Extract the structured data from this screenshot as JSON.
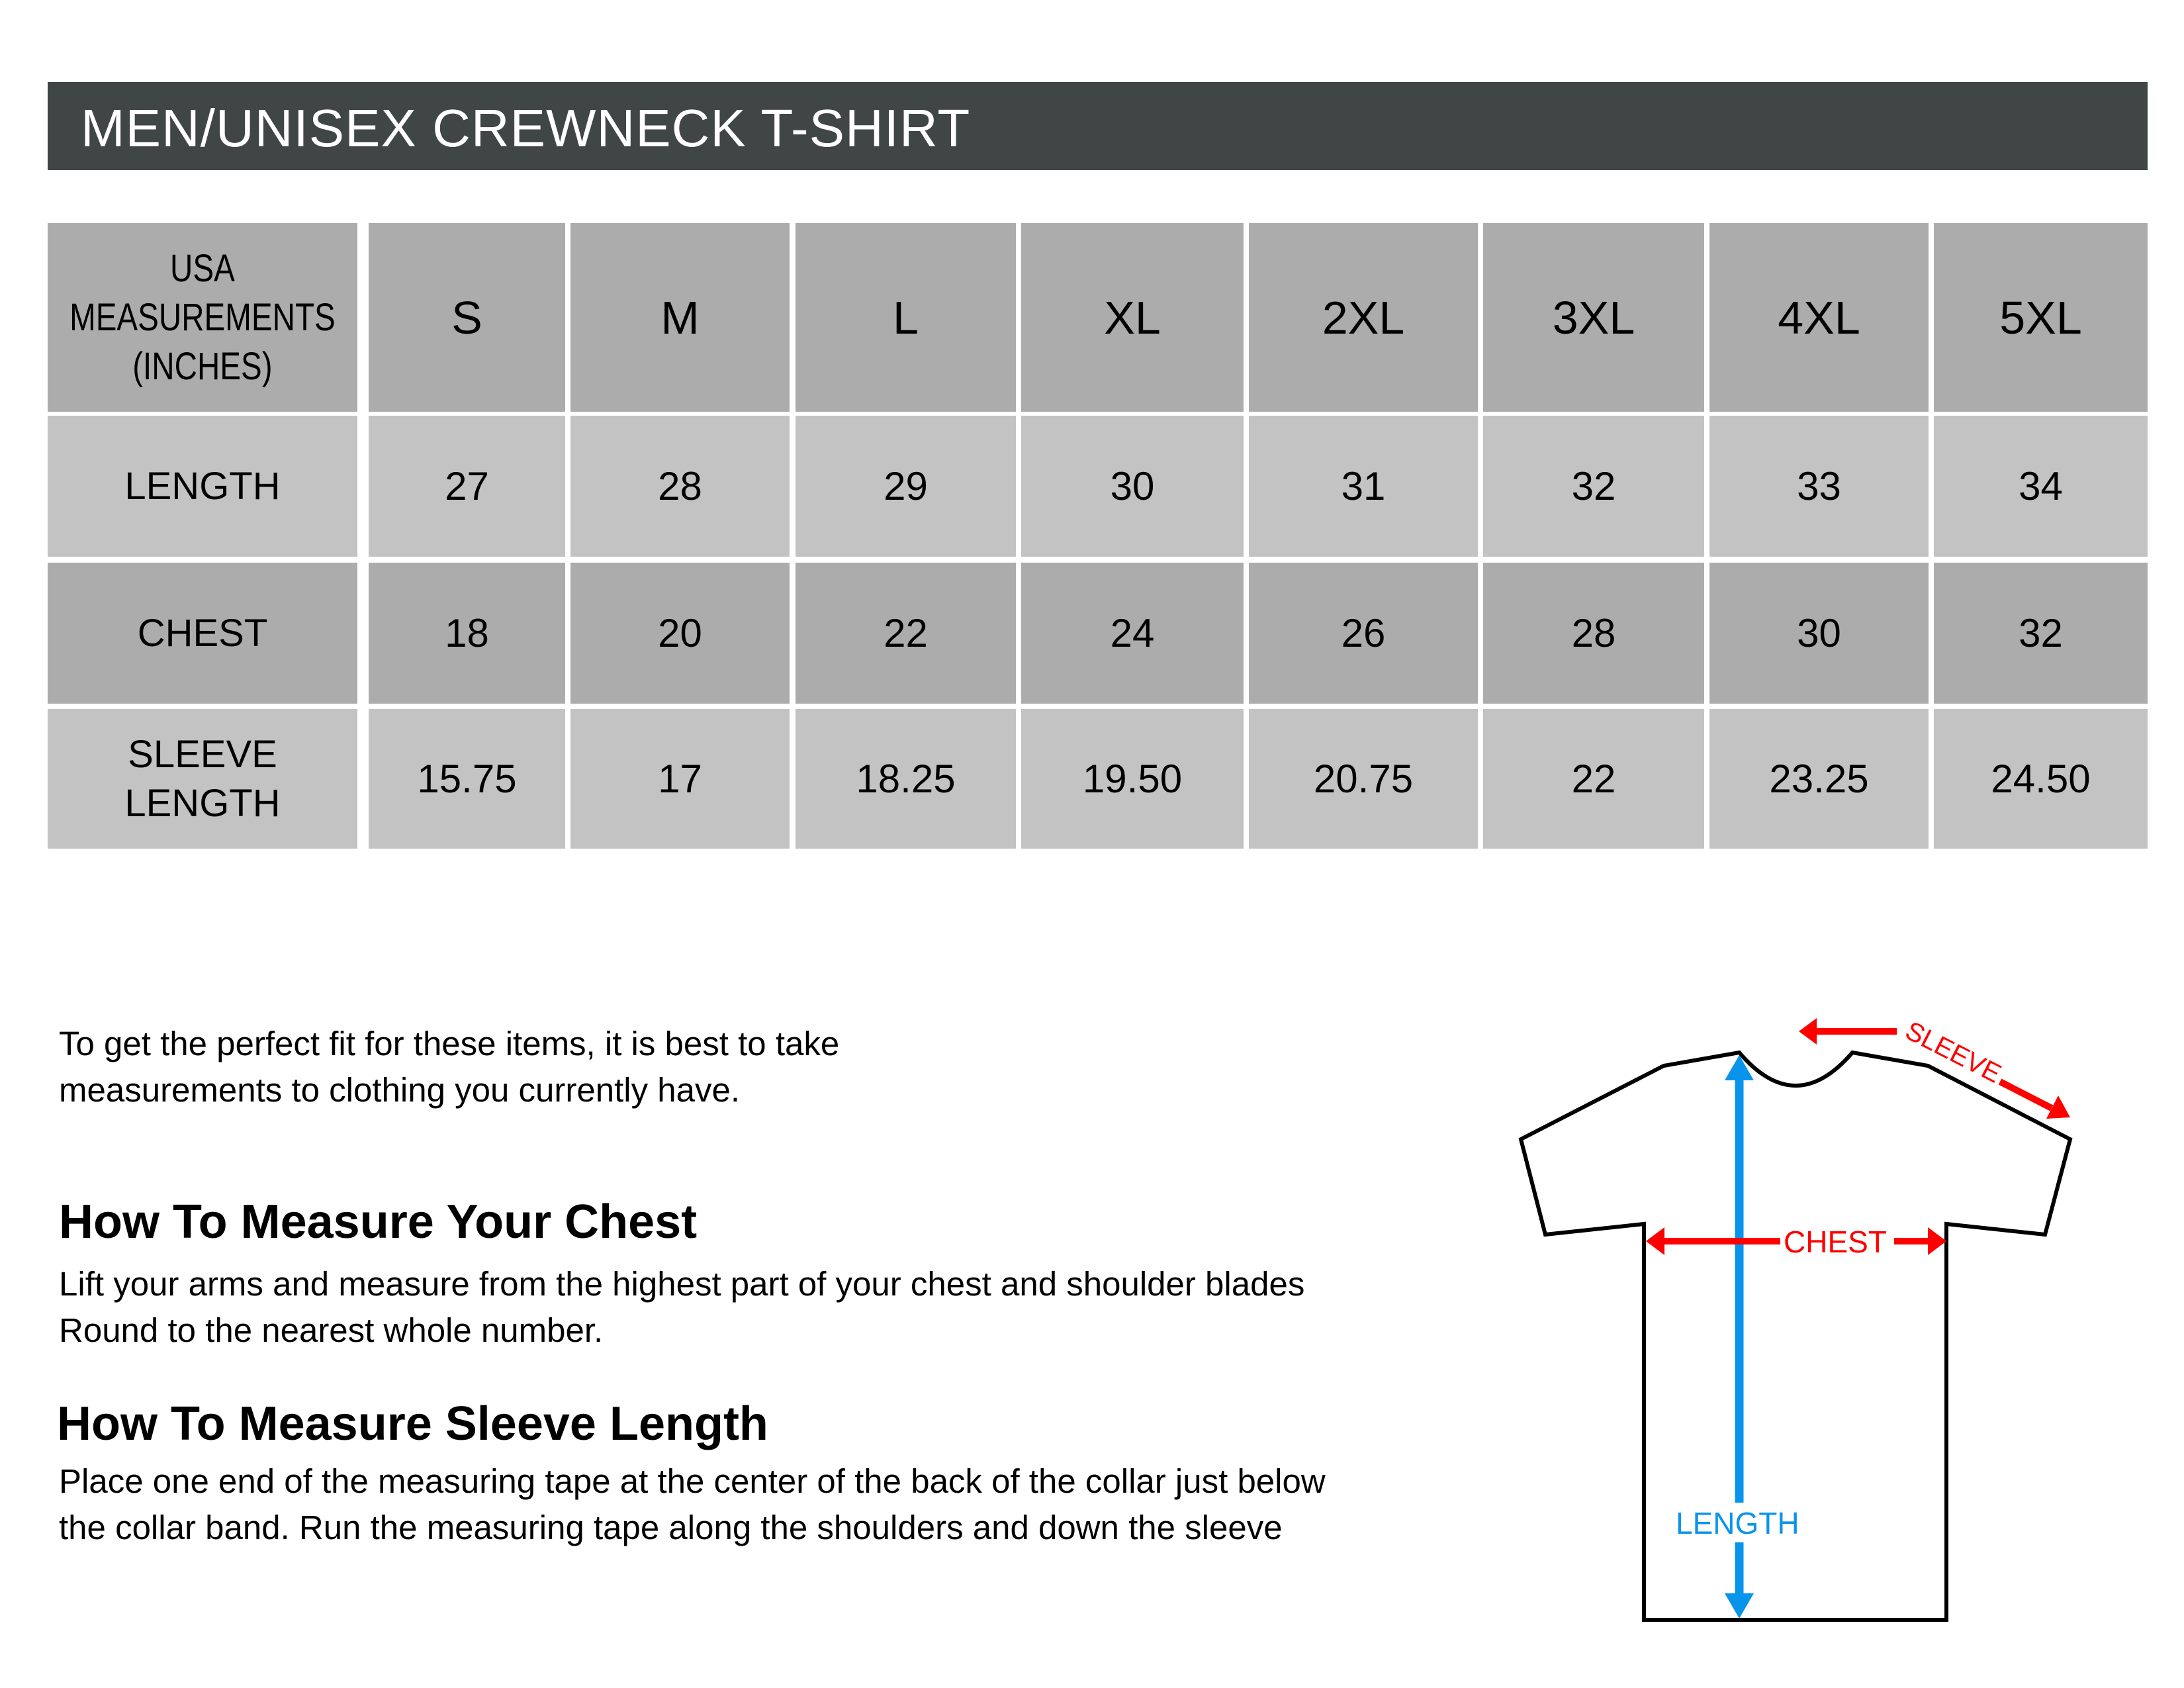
{
  "title": "MEN/UNISEX CREWNECK T-SHIRT",
  "table": {
    "corner_lines": [
      "USA",
      "MEASUREMENTS",
      "(INCHES)"
    ],
    "sizes": [
      "S",
      "M",
      "L",
      "XL",
      "2XL",
      "3XL",
      "4XL",
      "5XL"
    ],
    "rows": [
      {
        "label": "LENGTH",
        "values": [
          "27",
          "28",
          "29",
          "30",
          "31",
          "32",
          "33",
          "34"
        ]
      },
      {
        "label": "CHEST",
        "values": [
          "18",
          "20",
          "22",
          "24",
          "26",
          "28",
          "30",
          "32"
        ]
      },
      {
        "label_lines": [
          "SLEEVE",
          "LENGTH"
        ],
        "values": [
          "15.75",
          "17",
          "18.25",
          "19.50",
          "20.75",
          "22",
          "23.25",
          "24.50"
        ]
      }
    ]
  },
  "intro": [
    "To get the perfect fit for these items, it is best to take",
    "measurements to clothing you currently have."
  ],
  "chest_section": {
    "heading": "How To Measure Your Chest",
    "lines": [
      "Lift your arms and measure from the highest part of your chest and shoulder blades",
      "Round to the nearest whole number."
    ]
  },
  "sleeve_section": {
    "heading": "How To Measure Sleeve Length",
    "lines": [
      "Place one end of the measuring tape at the center of the back of the collar just below",
      "the collar band. Run the measuring tape along the shoulders and down the sleeve"
    ]
  },
  "diagram": {
    "sleeve_label": "SLEEVE",
    "chest_label": "CHEST",
    "length_label": "LENGTH",
    "colors": {
      "header_bar": "#404545",
      "header_cells": "#acacac",
      "light_cells": "#c3c3c3",
      "red_arrow": "#ff0000",
      "blue_arrow": "#0994ec"
    }
  }
}
